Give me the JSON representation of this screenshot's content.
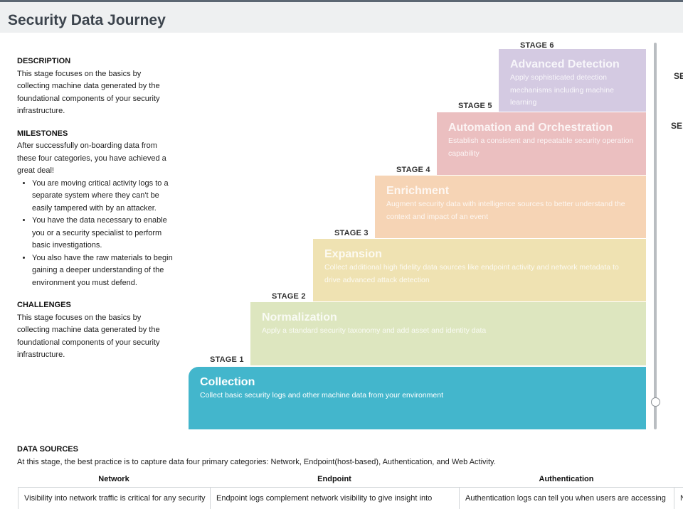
{
  "page": {
    "title": "Security Data Journey"
  },
  "left": {
    "description_title": "DESCRIPTION",
    "description_text": "This stage focuses on the basics by collecting machine data generated by the foundational components of your security infrastructure.",
    "milestones_title": "MILESTONES",
    "milestones_intro": "After successfully on-boarding data from these four categories, you have achieved a great deal!",
    "milestones": [
      "You are moving critical activity logs to a separate system where they can't be easily tampered with by an attacker.",
      "You have the data necessary to enable you or a security specialist to perform basic investigations.",
      "You also have the raw materials to begin gaining a deeper understanding of the environment you must defend."
    ],
    "challenges_title": "CHALLENGES",
    "challenges_text": "This stage focuses on the basics by collecting machine data generated by the foundational components of your security infrastructure."
  },
  "stages": [
    {
      "label": "STAGE 1",
      "name": "Collection",
      "desc": "Collect basic security logs and other machine data from your environment",
      "color": "#43b6cc"
    },
    {
      "label": "STAGE 2",
      "name": "Normalization",
      "desc": "Apply a standard security taxonomy and add asset and identity data",
      "color": "#dde6bf"
    },
    {
      "label": "STAGE 3",
      "name": "Expansion",
      "desc": "Collect additional high fidelity data sources like endpoint activity and network metadata to drive advanced attack detection",
      "color": "#efe2b2"
    },
    {
      "label": "STAGE 4",
      "name": "Enrichment",
      "desc": "Augment security data with intelligence sources to better understand the context and impact of an event",
      "color": "#f6d4b5"
    },
    {
      "label": "STAGE 5",
      "name": "Automation and Orchestration",
      "desc": "Establish a consistent and repeatable security operation capability",
      "color": "#ebbfc0"
    },
    {
      "label": "STAGE 6",
      "name": "Advanced Detection",
      "desc": "Apply sophisticated detection mechanisms including machine learning",
      "color": "#d4cae2"
    }
  ],
  "right_cut": {
    "label_a": "SE",
    "label_b": "SE"
  },
  "data_sources": {
    "title": "DATA SOURCES",
    "text": "At this stage, the best practice is to capture data four primary categories: Network, Endpoint(host-based), Authentication, and Web Activity.",
    "columns": [
      {
        "header": "Network",
        "text": "Visibility into network traffic is critical for any security"
      },
      {
        "header": "Endpoint",
        "text": "Endpoint logs complement network visibility to give insight into"
      },
      {
        "header": "Authentication",
        "text": "Authentication logs can tell you when users are accessing"
      },
      {
        "header": "",
        "text": "N"
      }
    ]
  }
}
